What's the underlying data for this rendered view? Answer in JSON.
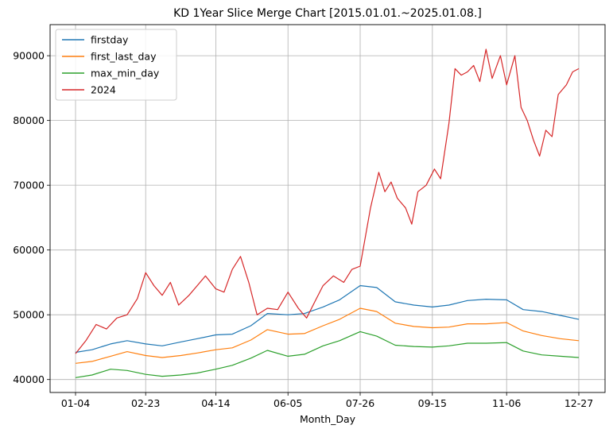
{
  "chart_data": {
    "type": "line",
    "title": "KD 1Year Slice Merge Chart [2015.01.01.~2025.01.08.]",
    "xlabel": "Month_Day",
    "ylabel": "",
    "x_tick_labels": [
      "01-04",
      "02-23",
      "04-14",
      "06-05",
      "07-26",
      "09-15",
      "11-06",
      "12-27"
    ],
    "x_tick_positions": [
      0,
      34,
      68,
      103,
      138,
      173,
      209,
      244
    ],
    "x_range": [
      0,
      244
    ],
    "y_tick_values": [
      40000,
      50000,
      60000,
      70000,
      80000,
      90000
    ],
    "y_tick_labels": [
      "40000",
      "50000",
      "60000",
      "70000",
      "80000",
      "90000"
    ],
    "ylim": [
      38000,
      94800
    ],
    "grid": true,
    "legend_position": "top-left",
    "series": [
      {
        "name": "firstday",
        "color": "#1f77b4",
        "x": [
          0,
          8,
          17,
          25,
          34,
          42,
          51,
          59,
          68,
          76,
          85,
          93,
          103,
          111,
          120,
          128,
          138,
          146,
          155,
          164,
          173,
          181,
          190,
          199,
          209,
          217,
          226,
          235,
          244
        ],
        "y": [
          44200,
          44600,
          45500,
          46000,
          45500,
          45200,
          45800,
          46300,
          46900,
          47000,
          48300,
          50200,
          50000,
          50200,
          51200,
          52300,
          54500,
          54200,
          52000,
          51500,
          51200,
          51500,
          52200,
          52400,
          52300,
          50800,
          50500,
          49900,
          49300
        ]
      },
      {
        "name": "first_last_day",
        "color": "#ff7f0e",
        "x": [
          0,
          8,
          17,
          25,
          34,
          42,
          51,
          59,
          68,
          76,
          85,
          93,
          103,
          111,
          120,
          128,
          138,
          146,
          155,
          164,
          173,
          181,
          190,
          199,
          209,
          217,
          226,
          235,
          244
        ],
        "y": [
          42500,
          42800,
          43600,
          44300,
          43700,
          43400,
          43700,
          44100,
          44600,
          44900,
          46100,
          47700,
          47000,
          47100,
          48300,
          49300,
          51000,
          50500,
          48700,
          48200,
          48000,
          48100,
          48600,
          48600,
          48800,
          47500,
          46800,
          46300,
          46000
        ]
      },
      {
        "name": "max_min_day",
        "color": "#2ca02c",
        "x": [
          0,
          8,
          17,
          25,
          34,
          42,
          51,
          59,
          68,
          76,
          85,
          93,
          103,
          111,
          120,
          128,
          138,
          146,
          155,
          164,
          173,
          181,
          190,
          199,
          209,
          217,
          226,
          235,
          244
        ],
        "y": [
          40300,
          40700,
          41600,
          41400,
          40800,
          40500,
          40700,
          41000,
          41600,
          42200,
          43300,
          44500,
          43600,
          43900,
          45200,
          46000,
          47400,
          46700,
          45300,
          45100,
          45000,
          45200,
          45600,
          45600,
          45700,
          44400,
          43800,
          43600,
          43400
        ]
      },
      {
        "name": "2024",
        "color": "#d62728",
        "x": [
          0,
          5,
          10,
          15,
          20,
          25,
          30,
          34,
          38,
          42,
          46,
          50,
          55,
          59,
          63,
          68,
          72,
          76,
          80,
          84,
          88,
          93,
          98,
          103,
          108,
          112,
          116,
          120,
          125,
          130,
          134,
          138,
          143,
          147,
          150,
          153,
          156,
          160,
          163,
          166,
          170,
          174,
          177,
          181,
          184,
          187,
          190,
          193,
          196,
          199,
          202,
          206,
          209,
          213,
          216,
          219,
          222,
          225,
          228,
          231,
          234,
          238,
          241,
          244
        ],
        "y": [
          44000,
          46000,
          48500,
          47800,
          49500,
          50000,
          52500,
          56500,
          54500,
          53000,
          55000,
          51500,
          53000,
          54500,
          56000,
          54000,
          53500,
          57000,
          59000,
          55000,
          50000,
          51000,
          50800,
          53500,
          51000,
          49500,
          52000,
          54500,
          56000,
          55000,
          57000,
          57500,
          66500,
          72000,
          69000,
          70500,
          68000,
          66500,
          64000,
          69000,
          70000,
          72500,
          71000,
          79500,
          88000,
          87000,
          87500,
          88500,
          86000,
          91000,
          86500,
          90000,
          85500,
          90000,
          82000,
          80000,
          77000,
          74500,
          78500,
          77500,
          84000,
          85500,
          87500,
          88000
        ]
      }
    ]
  }
}
